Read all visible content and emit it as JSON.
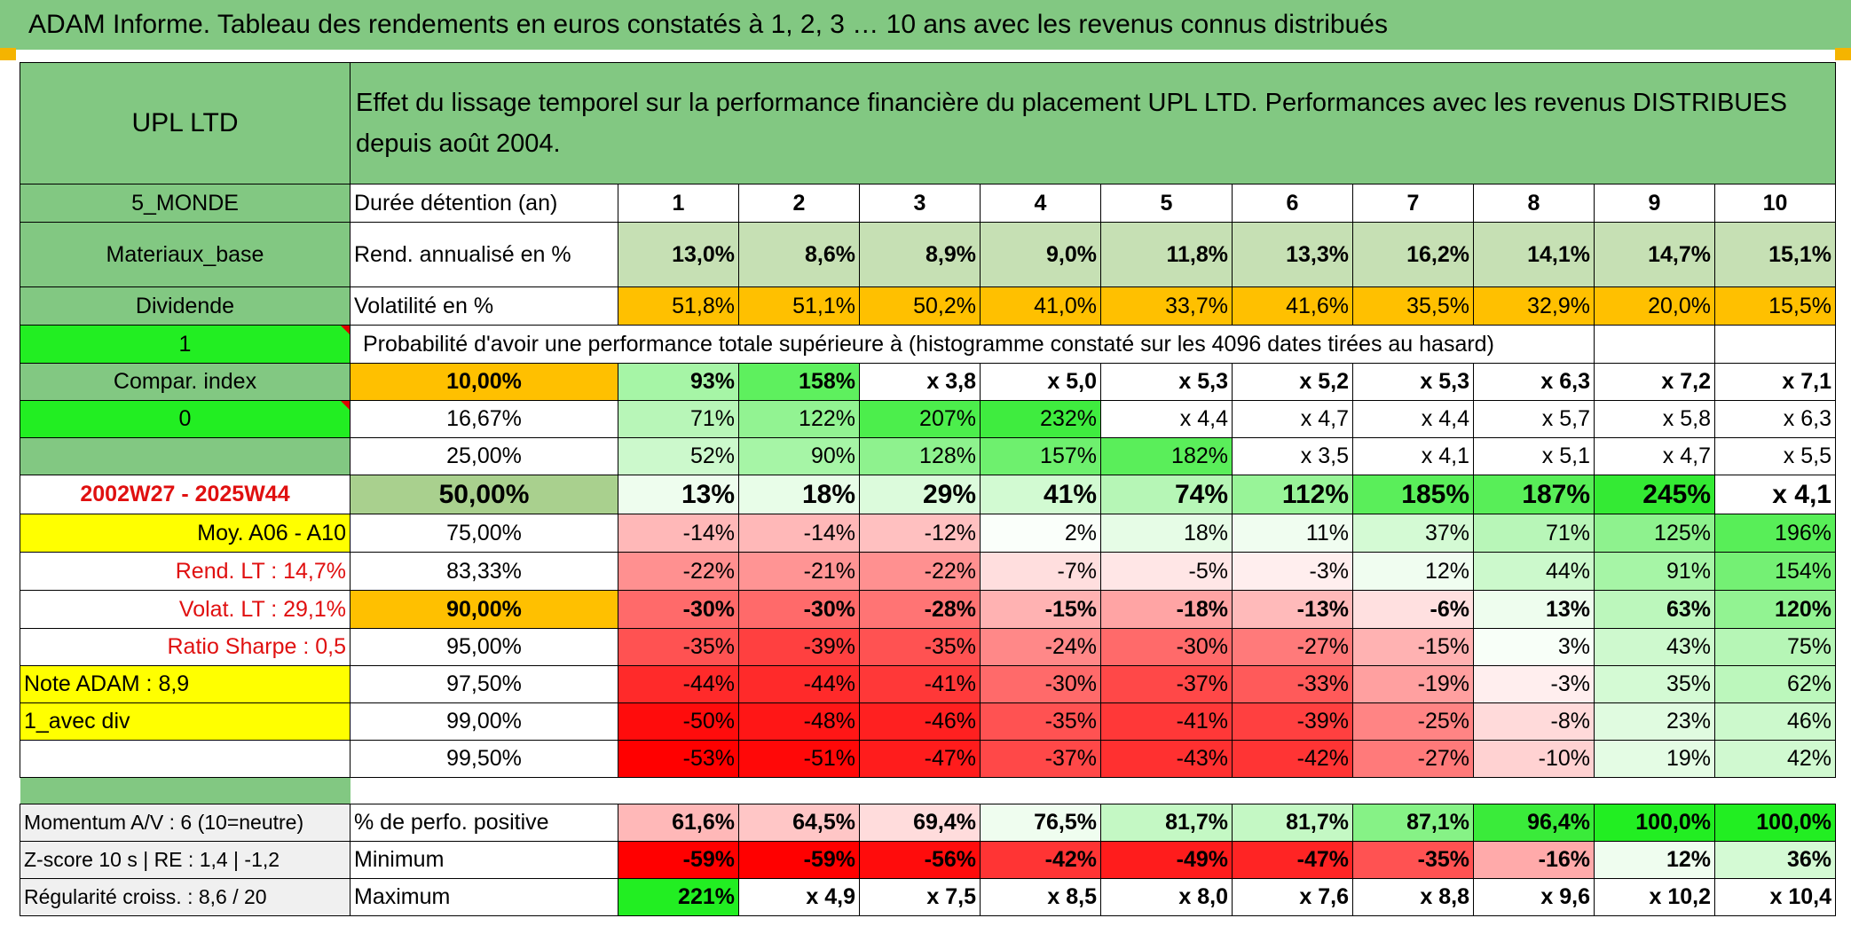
{
  "title": "ADAM Informe. Tableau des rendements en euros constatés à 1, 2, 3 … 10 ans avec les revenus connus distribués",
  "header": {
    "fund": "UPL LTD",
    "description": "Effet du lissage temporel sur la performance financière du placement UPL LTD. Performances avec les revenus DISTRIBUES depuis août 2004."
  },
  "side": {
    "region": "5_MONDE",
    "sector": "Materiaux_base",
    "income": "Dividende",
    "flag1": "1",
    "compar": "Compar. index",
    "flag0": "0",
    "period": "2002W27 - 2025W44",
    "moy": "Moy. A06 - A10",
    "rend_lt": "Rend. LT :   14,7%",
    "volat_lt": "Volat. LT :   29,1%",
    "sharpe": "Ratio Sharpe :    0,5",
    "note": "Note ADAM : 8,9",
    "div": "1_avec div",
    "momentum": "Momentum A/V : 6 (10=neutre)",
    "zscore": "Z-score 10 s | RE : 1,4 | -1,2",
    "regularite": "Régularité croiss. : 8,6 / 20"
  },
  "labels": {
    "duree": "Durée détention (an)",
    "rend": "Rend. annualisé en %",
    "volat": "Volatilité en %",
    "proba": "Probabilité d'avoir une performance totale supérieure à (histogramme constaté sur les 4096 dates tirées au hasard)",
    "positive": "% de perfo. positive",
    "minimum": "Minimum",
    "maximum": "Maximum"
  },
  "years": [
    "1",
    "2",
    "3",
    "4",
    "5",
    "6",
    "7",
    "8",
    "9",
    "10"
  ],
  "rend": [
    "13,0%",
    "8,6%",
    "8,9%",
    "9,0%",
    "11,8%",
    "13,3%",
    "16,2%",
    "14,1%",
    "14,7%",
    "15,1%"
  ],
  "volat": [
    "51,8%",
    "51,1%",
    "50,2%",
    "41,0%",
    "33,7%",
    "41,6%",
    "35,5%",
    "32,9%",
    "20,0%",
    "15,5%"
  ],
  "quantiles": [
    {
      "label": "10,00%",
      "values": [
        "93%",
        "158%",
        "x 3,8",
        "x 5,0",
        "x 5,3",
        "x 5,2",
        "x 5,3",
        "x 6,3",
        "x 7,2",
        "x 7,1"
      ],
      "colors": [
        "#a6f5a6",
        "#5ef05e",
        "#fff",
        "#fff",
        "#fff",
        "#fff",
        "#fff",
        "#fff",
        "#fff",
        "#fff"
      ]
    },
    {
      "label": "16,67%",
      "values": [
        "71%",
        "122%",
        "207%",
        "232%",
        "x 4,4",
        "x 4,7",
        "x 4,4",
        "x 5,7",
        "x 5,8",
        "x 6,3"
      ],
      "colors": [
        "#b8f6b8",
        "#92f392",
        "#4cee4c",
        "#3fec3f",
        "#fff",
        "#fff",
        "#fff",
        "#fff",
        "#fff",
        "#fff"
      ]
    },
    {
      "label": "25,00%",
      "values": [
        "52%",
        "90%",
        "128%",
        "157%",
        "182%",
        "x 3,5",
        "x 4,1",
        "x 5,1",
        "x 4,7",
        "x 5,5"
      ],
      "colors": [
        "#ccf9cc",
        "#a6f5a6",
        "#8ef28e",
        "#6ef06e",
        "#5aee5a",
        "#fff",
        "#fff",
        "#fff",
        "#fff",
        "#fff"
      ]
    },
    {
      "label": "50,00%",
      "values": [
        "13%",
        "18%",
        "29%",
        "41%",
        "74%",
        "112%",
        "185%",
        "187%",
        "245%",
        "x 4,1"
      ],
      "colors": [
        "#eefdee",
        "#e8fde8",
        "#dcfbdc",
        "#d2fad2",
        "#b6f6b6",
        "#98f498",
        "#5aee5a",
        "#58ee58",
        "#34ea34",
        "#fff"
      ]
    },
    {
      "label": "75,00%",
      "values": [
        "-14%",
        "-14%",
        "-12%",
        "2%",
        "18%",
        "11%",
        "37%",
        "71%",
        "125%",
        "196%"
      ],
      "colors": [
        "#ffb8b8",
        "#ffb8b8",
        "#ffc0c0",
        "#fafffa",
        "#e6fce6",
        "#f0fdf0",
        "#d4fad4",
        "#b8f6b8",
        "#8ef28e",
        "#58ee58"
      ]
    },
    {
      "label": "83,33%",
      "values": [
        "-22%",
        "-21%",
        "-22%",
        "-7%",
        "-5%",
        "-3%",
        "12%",
        "44%",
        "91%",
        "154%"
      ],
      "colors": [
        "#ff9090",
        "#ff9494",
        "#ff9090",
        "#ffdede",
        "#ffe6e6",
        "#ffeeee",
        "#f0fdf0",
        "#ccf9cc",
        "#a6f5a6",
        "#74f074"
      ]
    },
    {
      "label": "90,00%",
      "values": [
        "-30%",
        "-30%",
        "-28%",
        "-15%",
        "-18%",
        "-13%",
        "-6%",
        "13%",
        "63%",
        "120%"
      ],
      "colors": [
        "#ff6a6a",
        "#ff6a6a",
        "#ff7474",
        "#ffb2b2",
        "#ffa4a4",
        "#ffbaba",
        "#ffe0e0",
        "#eefdee",
        "#bcf7bc",
        "#92f392"
      ]
    },
    {
      "label": "95,00%",
      "values": [
        "-35%",
        "-39%",
        "-35%",
        "-24%",
        "-30%",
        "-27%",
        "-15%",
        "3%",
        "43%",
        "75%"
      ],
      "colors": [
        "#ff5252",
        "#ff4040",
        "#ff5252",
        "#ff8888",
        "#ff6a6a",
        "#ff7a7a",
        "#ffb2b2",
        "#f8fff8",
        "#cef9ce",
        "#b6f6b6"
      ]
    },
    {
      "label": "97,50%",
      "values": [
        "-44%",
        "-44%",
        "-41%",
        "-30%",
        "-37%",
        "-33%",
        "-19%",
        "-3%",
        "35%",
        "62%"
      ],
      "colors": [
        "#ff2a2a",
        "#ff2a2a",
        "#ff3838",
        "#ff6a6a",
        "#ff4848",
        "#ff5a5a",
        "#ffa0a0",
        "#ffeeee",
        "#d4fad4",
        "#bcf7bc"
      ]
    },
    {
      "label": "99,00%",
      "values": [
        "-50%",
        "-48%",
        "-46%",
        "-35%",
        "-41%",
        "-39%",
        "-25%",
        "-8%",
        "23%",
        "46%"
      ],
      "colors": [
        "#ff0c0c",
        "#ff1616",
        "#ff2020",
        "#ff5252",
        "#ff3838",
        "#ff4040",
        "#ff8484",
        "#ffdada",
        "#e0fbe0",
        "#ccf9cc"
      ]
    },
    {
      "label": "99,50%",
      "values": [
        "-53%",
        "-51%",
        "-47%",
        "-37%",
        "-43%",
        "-42%",
        "-27%",
        "-10%",
        "19%",
        "42%"
      ],
      "colors": [
        "#ff0000",
        "#ff0808",
        "#ff1c1c",
        "#ff4848",
        "#ff3030",
        "#ff3434",
        "#ff7a7a",
        "#ffd2d2",
        "#e4fce4",
        "#d0f9d0"
      ]
    }
  ],
  "positive": {
    "values": [
      "61,6%",
      "64,5%",
      "69,4%",
      "76,5%",
      "81,7%",
      "81,7%",
      "87,1%",
      "96,4%",
      "100,0%",
      "100,0%"
    ],
    "colors": [
      "#ffb8b8",
      "#ffc6c6",
      "#ffdcdc",
      "#effdef",
      "#c4f8c4",
      "#c4f8c4",
      "#86f286",
      "#3aeb3a",
      "#22ee22",
      "#22ee22"
    ]
  },
  "minimum": {
    "values": [
      "-59%",
      "-59%",
      "-56%",
      "-42%",
      "-49%",
      "-47%",
      "-35%",
      "-16%",
      "12%",
      "36%"
    ],
    "colors": [
      "#ff0000",
      "#ff0000",
      "#ff0c0c",
      "#ff3434",
      "#ff1c1c",
      "#ff2424",
      "#ff5252",
      "#ffaaaa",
      "#effdef",
      "#d4fad4"
    ]
  },
  "maximum": {
    "values": [
      "221%",
      "x 4,9",
      "x 7,5",
      "x 8,5",
      "x 8,0",
      "x 7,6",
      "x 8,8",
      "x 9,6",
      "x 10,2",
      "x 10,4"
    ],
    "colors": [
      "#22ee22",
      "#fff",
      "#fff",
      "#fff",
      "#fff",
      "#fff",
      "#fff",
      "#fff",
      "#fff",
      "#fff"
    ]
  }
}
